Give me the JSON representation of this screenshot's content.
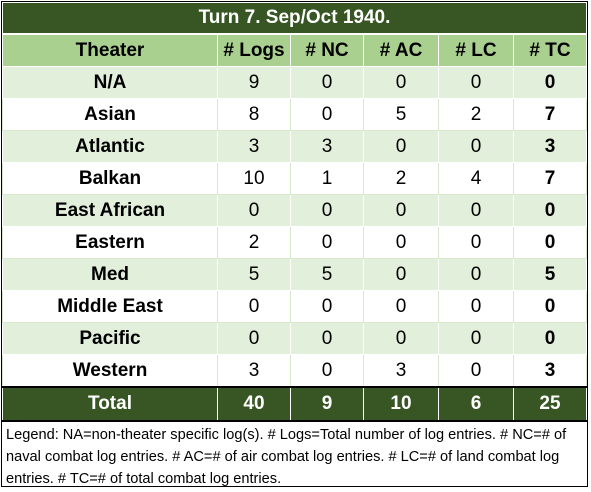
{
  "title": "Turn 7.  Sep/Oct 1940.",
  "table": {
    "header": [
      "Theater",
      "# Logs",
      "# NC",
      "# AC",
      "# LC",
      "# TC"
    ],
    "rows": [
      [
        "N/A",
        9,
        0,
        0,
        0,
        0
      ],
      [
        "Asian",
        8,
        0,
        5,
        2,
        7
      ],
      [
        "Atlantic",
        3,
        3,
        0,
        0,
        3
      ],
      [
        "Balkan",
        10,
        1,
        2,
        4,
        7
      ],
      [
        "East African",
        0,
        0,
        0,
        0,
        0
      ],
      [
        "Eastern",
        2,
        0,
        0,
        0,
        0
      ],
      [
        "Med",
        5,
        5,
        0,
        0,
        5
      ],
      [
        "Middle East",
        0,
        0,
        0,
        0,
        0
      ],
      [
        "Pacific",
        0,
        0,
        0,
        0,
        0
      ],
      [
        "Western",
        3,
        0,
        3,
        0,
        3
      ]
    ],
    "total": [
      "Total",
      40,
      9,
      10,
      6,
      25
    ]
  },
  "legend": "Legend:  NA=non-theater specific log(s).  # Logs=Total number of log entries.  # NC=# of naval combat log entries.  # AC=# of air combat log entries.  # LC=# of land combat log entries.  # TC=# of total combat log entries."
}
